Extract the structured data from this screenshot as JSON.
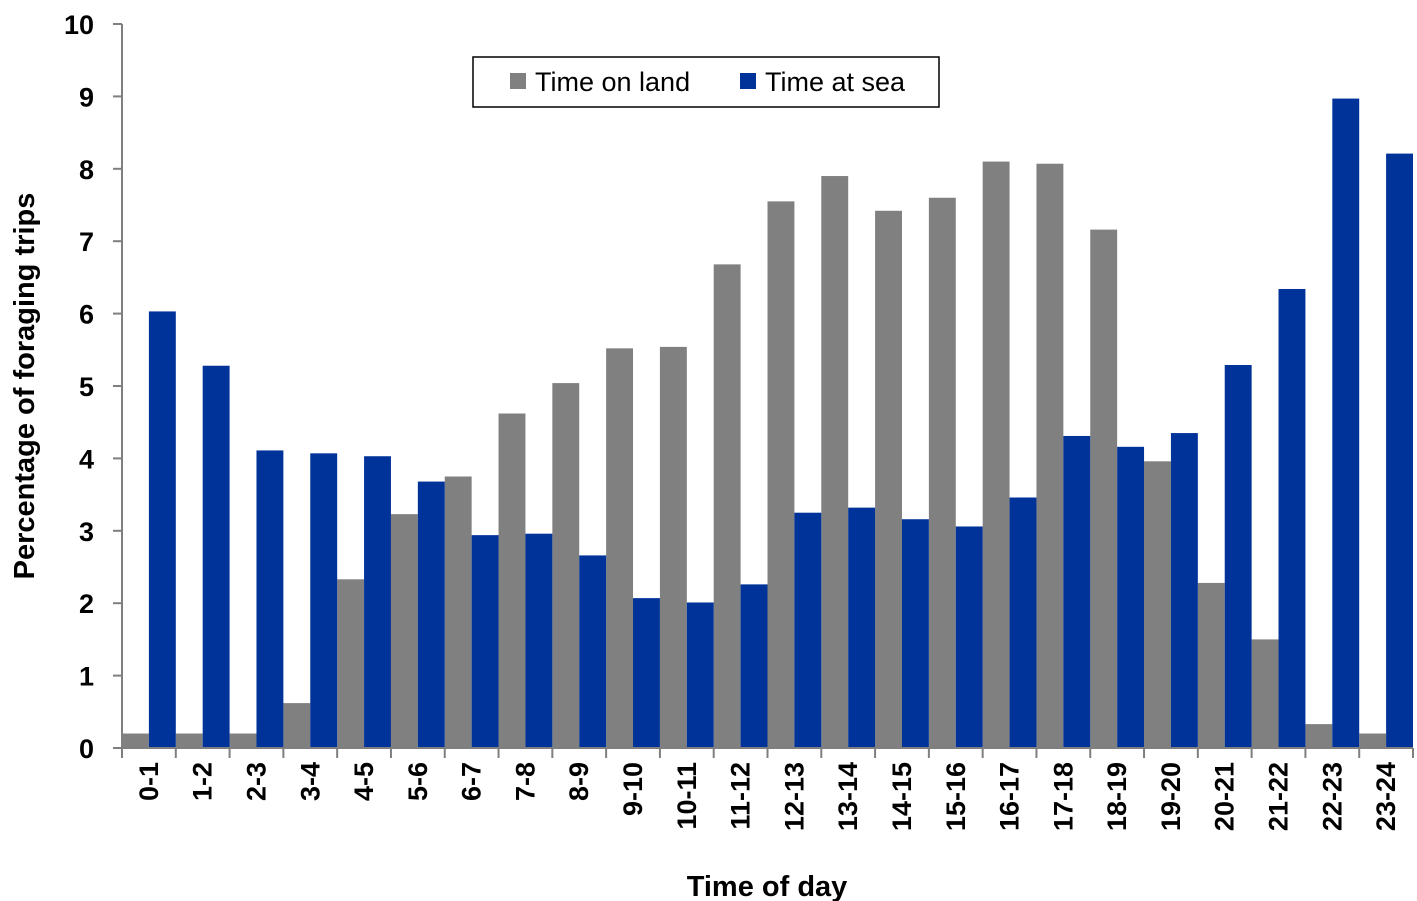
{
  "chart_data": {
    "type": "bar",
    "title": "",
    "xlabel": "Time of day",
    "ylabel": "Percentage of foraging trips",
    "ylim": [
      0,
      10
    ],
    "yticks": [
      "0",
      "1",
      "2",
      "3",
      "4",
      "5",
      "6",
      "7",
      "8",
      "9",
      "10"
    ],
    "grid": false,
    "legend_position": "top-center",
    "categories": [
      "0-1",
      "1-2",
      "2-3",
      "3-4",
      "4-5",
      "5-6",
      "6-7",
      "7-8",
      "8-9",
      "9-10",
      "10-11",
      "11-12",
      "12-13",
      "13-14",
      "14-15",
      "15-16",
      "16-17",
      "17-18",
      "18-19",
      "19-20",
      "20-21",
      "21-22",
      "22-23",
      "23-24"
    ],
    "series": [
      {
        "name": "Time on land",
        "color": "#808080",
        "values": [
          0.2,
          0.2,
          0.2,
          0.62,
          2.33,
          3.23,
          3.75,
          4.62,
          5.04,
          5.52,
          5.54,
          6.68,
          7.55,
          7.9,
          7.42,
          7.6,
          8.1,
          8.07,
          7.16,
          3.96,
          2.28,
          1.5,
          0.33,
          0.2
        ]
      },
      {
        "name": "Time at sea",
        "color": "#003399",
        "values": [
          6.03,
          5.28,
          4.11,
          4.07,
          4.03,
          3.68,
          2.94,
          2.96,
          2.66,
          2.07,
          2.01,
          2.26,
          3.25,
          3.32,
          3.16,
          3.06,
          3.46,
          4.31,
          4.16,
          4.35,
          5.29,
          6.34,
          8.97,
          8.21
        ]
      }
    ]
  }
}
